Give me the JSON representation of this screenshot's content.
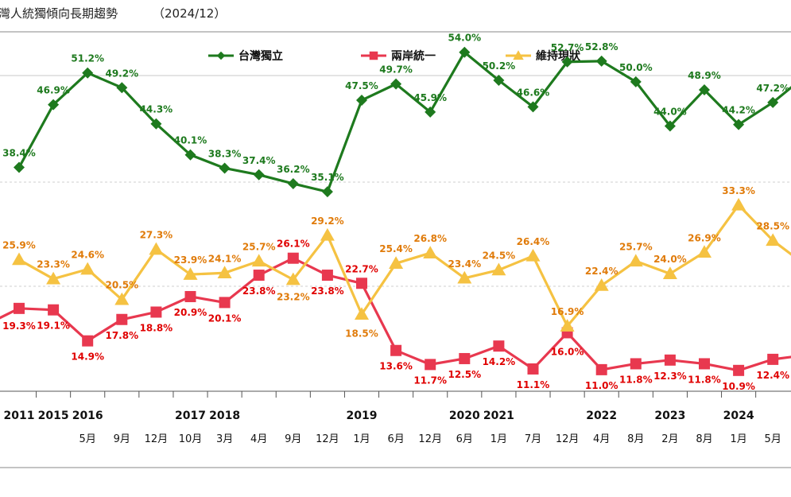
{
  "chart_data": {
    "type": "line",
    "title": "灣人統獨傾向長期趨勢",
    "subtitle": "（2024/12）",
    "legend_position": "top",
    "year_labels": [
      {
        "text": "2011",
        "col": 0
      },
      {
        "text": "2015",
        "col": 1
      },
      {
        "text": "2016",
        "col": 2
      },
      {
        "text": "2017",
        "col": 5
      },
      {
        "text": "2018",
        "col": 6
      },
      {
        "text": "2019",
        "col": 10
      },
      {
        "text": "2020",
        "col": 13
      },
      {
        "text": "2021",
        "col": 14
      },
      {
        "text": "2022",
        "col": 17
      },
      {
        "text": "2023",
        "col": 19
      },
      {
        "text": "2024",
        "col": 21
      }
    ],
    "month_labels": [
      {
        "text": "5月",
        "col": 2
      },
      {
        "text": "9月",
        "col": 3
      },
      {
        "text": "12月",
        "col": 4
      },
      {
        "text": "10月",
        "col": 5
      },
      {
        "text": "3月",
        "col": 6
      },
      {
        "text": "4月",
        "col": 7
      },
      {
        "text": "9月",
        "col": 8
      },
      {
        "text": "12月",
        "col": 9
      },
      {
        "text": "1月",
        "col": 10
      },
      {
        "text": "6月",
        "col": 11
      },
      {
        "text": "12月",
        "col": 12
      },
      {
        "text": "6月",
        "col": 13
      },
      {
        "text": "1月",
        "col": 14
      },
      {
        "text": "7月",
        "col": 15
      },
      {
        "text": "12月",
        "col": 16
      },
      {
        "text": "4月",
        "col": 17
      },
      {
        "text": "8月",
        "col": 18
      },
      {
        "text": "2月",
        "col": 19
      },
      {
        "text": "8月",
        "col": 20
      },
      {
        "text": "1月",
        "col": 21
      },
      {
        "text": "5月",
        "col": 22
      }
    ],
    "series": [
      {
        "name": "台灣獨立",
        "color": "#1e7a1e",
        "label_color": "#1e7a1e",
        "marker": "diamond",
        "points": [
          {
            "x": 0,
            "y": 38.4,
            "label": "38.4%"
          },
          {
            "x": 1,
            "y": 46.9,
            "label": "46.9%"
          },
          {
            "x": 2,
            "y": 51.2,
            "label": "51.2%"
          },
          {
            "x": 3,
            "y": 49.2,
            "label": "49.2%"
          },
          {
            "x": 4,
            "y": 44.3,
            "label": "44.3%"
          },
          {
            "x": 5,
            "y": 40.1,
            "label": "40.1%"
          },
          {
            "x": 6,
            "y": 38.3,
            "label": "38.3%"
          },
          {
            "x": 7,
            "y": 37.4,
            "label": "37.4%"
          },
          {
            "x": 8,
            "y": 36.2,
            "label": "36.2%"
          },
          {
            "x": 9,
            "y": 35.1,
            "label": "35.1%"
          },
          {
            "x": 10,
            "y": 47.5,
            "label": "47.5%"
          },
          {
            "x": 11,
            "y": 49.7,
            "label": "49.7%"
          },
          {
            "x": 12,
            "y": 45.9,
            "label": "45.9%"
          },
          {
            "x": 13,
            "y": 54.0,
            "label": "54.0%"
          },
          {
            "x": 14,
            "y": 50.2,
            "label": "50.2%"
          },
          {
            "x": 15,
            "y": 46.6,
            "label": "46.6%"
          },
          {
            "x": 16,
            "y": 52.7,
            "label": "52.7%"
          },
          {
            "x": 17,
            "y": 52.8,
            "label": "52.8%"
          },
          {
            "x": 18,
            "y": 50.0,
            "label": "50.0%"
          },
          {
            "x": 19,
            "y": 44.0,
            "label": "44.0%"
          },
          {
            "x": 20,
            "y": 48.9,
            "label": "48.9%"
          },
          {
            "x": 21,
            "y": 44.2,
            "label": "44.2%"
          },
          {
            "x": 22,
            "y": 47.2,
            "label": "47.2%"
          },
          {
            "x": 23,
            "y": 51.0,
            "label": ""
          }
        ]
      },
      {
        "name": "兩岸統一",
        "color": "#e8384f",
        "label_color": "#e00000",
        "marker": "square",
        "points": [
          {
            "x": -1,
            "y": 17.0,
            "label": ""
          },
          {
            "x": 0,
            "y": 19.3,
            "label": "19.3%"
          },
          {
            "x": 1,
            "y": 19.1,
            "label": "19.1%"
          },
          {
            "x": 2,
            "y": 14.9,
            "label": "14.9%"
          },
          {
            "x": 3,
            "y": 17.8,
            "label": "17.8%"
          },
          {
            "x": 4,
            "y": 18.8,
            "label": "18.8%"
          },
          {
            "x": 5,
            "y": 20.9,
            "label": "20.9%"
          },
          {
            "x": 6,
            "y": 20.1,
            "label": "20.1%"
          },
          {
            "x": 7,
            "y": 23.8,
            "label": "23.8%"
          },
          {
            "x": 8,
            "y": 26.1,
            "label": "26.1%"
          },
          {
            "x": 9,
            "y": 23.8,
            "label": "23.8%"
          },
          {
            "x": 10,
            "y": 22.7,
            "label": "22.7%"
          },
          {
            "x": 11,
            "y": 13.6,
            "label": "13.6%"
          },
          {
            "x": 12,
            "y": 11.7,
            "label": "11.7%"
          },
          {
            "x": 13,
            "y": 12.5,
            "label": "12.5%"
          },
          {
            "x": 14,
            "y": 14.2,
            "label": "14.2%"
          },
          {
            "x": 15,
            "y": 11.1,
            "label": "11.1%"
          },
          {
            "x": 16,
            "y": 16.0,
            "label": "16.0%"
          },
          {
            "x": 17,
            "y": 11.0,
            "label": "11.0%"
          },
          {
            "x": 18,
            "y": 11.8,
            "label": "11.8%"
          },
          {
            "x": 19,
            "y": 12.3,
            "label": "12.3%"
          },
          {
            "x": 20,
            "y": 11.8,
            "label": "11.8%"
          },
          {
            "x": 21,
            "y": 10.9,
            "label": "10.9%"
          },
          {
            "x": 22,
            "y": 12.4,
            "label": "12.4%"
          },
          {
            "x": 23,
            "y": 13.0,
            "label": ""
          }
        ]
      },
      {
        "name": "維持現狀",
        "color": "#f5c242",
        "label_color": "#e07b0a",
        "marker": "triangle",
        "points": [
          {
            "x": 0,
            "y": 25.9,
            "label": "25.9%"
          },
          {
            "x": 1,
            "y": 23.3,
            "label": "23.3%"
          },
          {
            "x": 2,
            "y": 24.6,
            "label": "24.6%"
          },
          {
            "x": 3,
            "y": 20.5,
            "label": "20.5%"
          },
          {
            "x": 4,
            "y": 27.3,
            "label": "27.3%"
          },
          {
            "x": 5,
            "y": 23.9,
            "label": "23.9%"
          },
          {
            "x": 6,
            "y": 24.1,
            "label": "24.1%"
          },
          {
            "x": 7,
            "y": 25.7,
            "label": "25.7%"
          },
          {
            "x": 8,
            "y": 23.2,
            "label": "23.2%"
          },
          {
            "x": 9,
            "y": 29.2,
            "label": "29.2%"
          },
          {
            "x": 10,
            "y": 18.5,
            "label": "18.5%"
          },
          {
            "x": 11,
            "y": 25.4,
            "label": "25.4%"
          },
          {
            "x": 12,
            "y": 26.8,
            "label": "26.8%"
          },
          {
            "x": 13,
            "y": 23.4,
            "label": "23.4%"
          },
          {
            "x": 14,
            "y": 24.5,
            "label": "24.5%"
          },
          {
            "x": 15,
            "y": 26.4,
            "label": "26.4%"
          },
          {
            "x": 16,
            "y": 16.9,
            "label": "16.9%"
          },
          {
            "x": 17,
            "y": 22.4,
            "label": "22.4%"
          },
          {
            "x": 18,
            "y": 25.7,
            "label": "25.7%"
          },
          {
            "x": 19,
            "y": 24.0,
            "label": "24.0%"
          },
          {
            "x": 20,
            "y": 26.9,
            "label": "26.9%"
          },
          {
            "x": 21,
            "y": 33.3,
            "label": "33.3%"
          },
          {
            "x": 22,
            "y": 28.5,
            "label": "28.5%"
          },
          {
            "x": 23,
            "y": 25.0,
            "label": ""
          }
        ]
      }
    ],
    "grid": true
  }
}
